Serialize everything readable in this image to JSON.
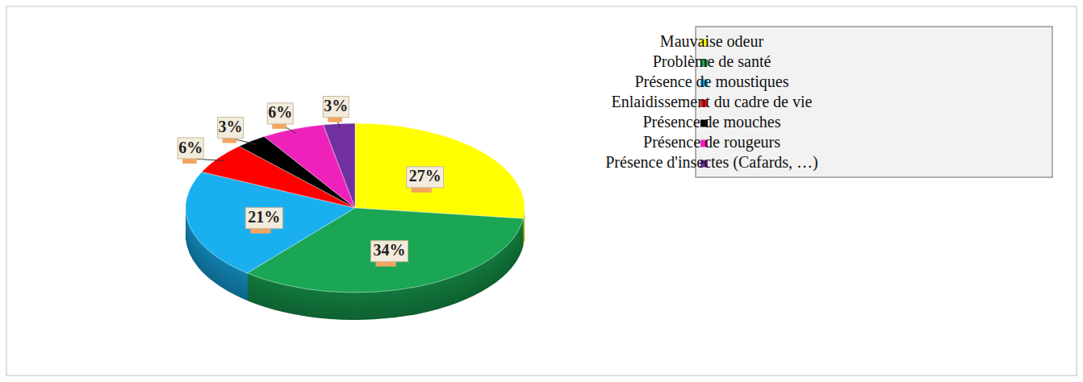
{
  "chart_data": {
    "type": "pie",
    "categories": [
      "Mauvaise odeur",
      "Problème de santé",
      "Présence de moustiques",
      "Enlaidissement du cadre de vie",
      "Présence de mouches",
      "Présence de rougeurs",
      "Présence d'insectes (Cafards, …)"
    ],
    "values": [
      27,
      34,
      21,
      6,
      3,
      6,
      3
    ],
    "value_labels": [
      "27%",
      "34%",
      "21%",
      "6%",
      "3%",
      "6%",
      "3%"
    ],
    "colors": [
      "#ffff00",
      "#1aa655",
      "#1ab0ef",
      "#ff0000",
      "#000000",
      "#ee22bb",
      "#7030a0"
    ],
    "data_labels": true,
    "legend": "right"
  }
}
